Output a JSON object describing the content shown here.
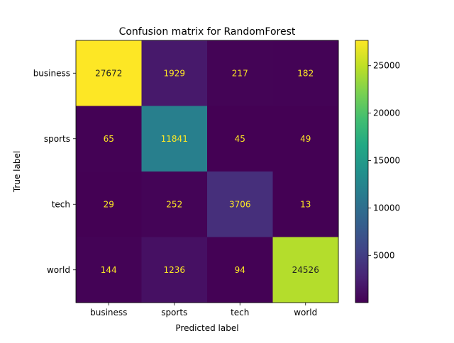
{
  "chart_data": {
    "type": "heatmap",
    "title": "Confusion matrix for RandomForest",
    "xlabel": "Predicted label",
    "ylabel": "True label",
    "x_categories": [
      "business",
      "sports",
      "tech",
      "world"
    ],
    "y_categories": [
      "business",
      "sports",
      "tech",
      "world"
    ],
    "values": [
      [
        27672,
        1929,
        217,
        182
      ],
      [
        65,
        11841,
        45,
        49
      ],
      [
        29,
        252,
        3706,
        13
      ],
      [
        144,
        1236,
        94,
        24526
      ]
    ],
    "colormap": "viridis",
    "colorbar": {
      "min": 13,
      "max": 27672,
      "ticks": [
        5000,
        10000,
        15000,
        20000,
        25000
      ]
    },
    "grid": false
  }
}
